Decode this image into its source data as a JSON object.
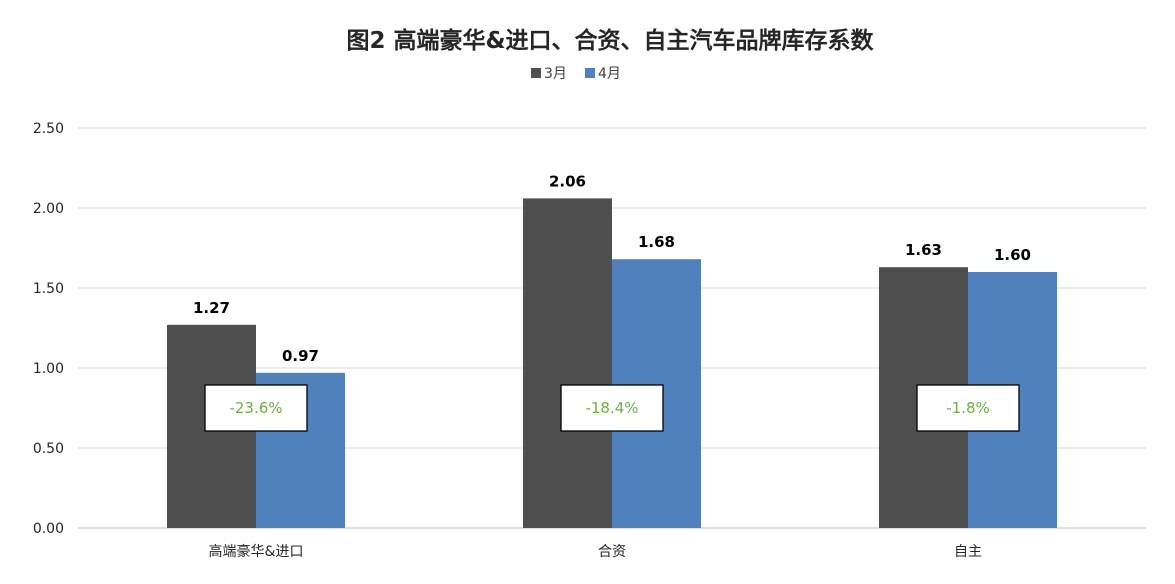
{
  "chart_data": {
    "type": "bar",
    "title": "图2  高端豪华&进口、合资、自主汽车品牌库存系数",
    "categories": [
      "高端豪华&进口",
      "合资",
      "自主"
    ],
    "series": [
      {
        "name": "3月",
        "color": "#4f4f4f",
        "values": [
          1.27,
          2.06,
          1.63
        ],
        "labels": [
          "1.27",
          "2.06",
          "1.63"
        ]
      },
      {
        "name": "4月",
        "color": "#4f81bd",
        "values": [
          0.97,
          1.68,
          1.6
        ],
        "labels": [
          "0.97",
          "1.68",
          "1.60"
        ]
      }
    ],
    "changes": [
      "-23.6%",
      "-18.4%",
      "-1.8%"
    ],
    "change_color": "#70ad47",
    "ylim": [
      0,
      2.5
    ],
    "yticks": [
      0,
      0.5,
      1.0,
      1.5,
      2.0,
      2.5
    ],
    "ytick_labels": [
      "0.00",
      "0.50",
      "1.00",
      "1.50",
      "2.00",
      "2.50"
    ],
    "xlabel": "",
    "ylabel": "",
    "grid": true,
    "legend_position": "top-center"
  }
}
